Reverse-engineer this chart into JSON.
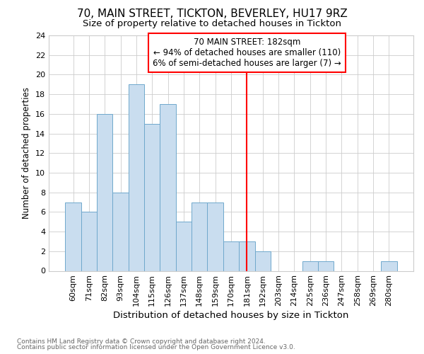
{
  "title": "70, MAIN STREET, TICKTON, BEVERLEY, HU17 9RZ",
  "subtitle": "Size of property relative to detached houses in Tickton",
  "xlabel": "Distribution of detached houses by size in Tickton",
  "ylabel": "Number of detached properties",
  "footnote1": "Contains HM Land Registry data © Crown copyright and database right 2024.",
  "footnote2": "Contains public sector information licensed under the Open Government Licence v3.0.",
  "categories": [
    "60sqm",
    "71sqm",
    "82sqm",
    "93sqm",
    "104sqm",
    "115sqm",
    "126sqm",
    "137sqm",
    "148sqm",
    "159sqm",
    "170sqm",
    "181sqm",
    "192sqm",
    "203sqm",
    "214sqm",
    "225sqm",
    "236sqm",
    "247sqm",
    "258sqm",
    "269sqm",
    "280sqm"
  ],
  "values": [
    7,
    6,
    16,
    8,
    19,
    15,
    17,
    5,
    7,
    7,
    3,
    3,
    2,
    0,
    0,
    1,
    1,
    0,
    0,
    0,
    1
  ],
  "bar_color": "#c9ddef",
  "bar_edge_color": "#6fa8cc",
  "annotation_line_x": "181sqm",
  "annotation_line_color": "red",
  "annotation_box_text": "70 MAIN STREET: 182sqm\n← 94% of detached houses are smaller (110)\n6% of semi-detached houses are larger (7) →",
  "annotation_box_color": "red",
  "ylim": [
    0,
    24
  ],
  "yticks": [
    0,
    2,
    4,
    6,
    8,
    10,
    12,
    14,
    16,
    18,
    20,
    22,
    24
  ],
  "grid_color": "#cccccc",
  "background_color": "#ffffff",
  "title_fontsize": 11,
  "subtitle_fontsize": 9.5,
  "xlabel_fontsize": 9.5,
  "ylabel_fontsize": 8.5,
  "annotation_fontsize": 8.5,
  "tick_fontsize": 8.0,
  "footnote_fontsize": 6.5
}
